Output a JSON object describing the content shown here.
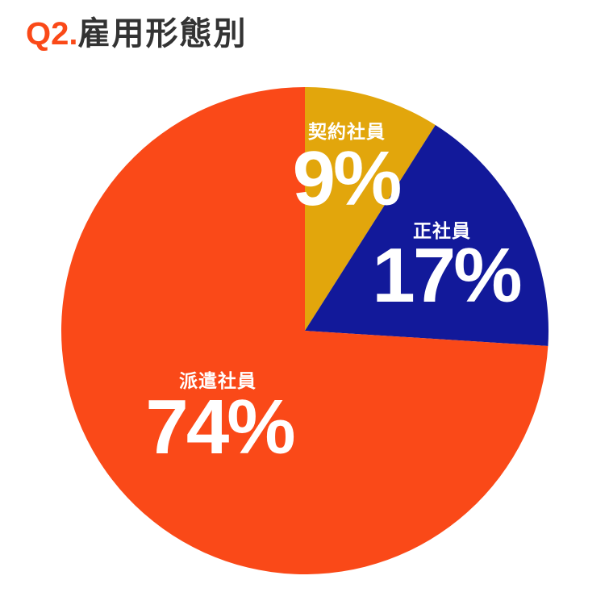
{
  "title": {
    "prefix": "Q2.",
    "text": "雇用形態別"
  },
  "chart_data": {
    "type": "pie",
    "title": "Q2.雇用形態別",
    "start_angle_deg": 0,
    "direction": "clockwise",
    "legend_position": "none",
    "labels_inside_slices": true,
    "label_text_color": "#FFFFFF",
    "slices": [
      {
        "label": "契約社員",
        "value": 9,
        "display": "9%",
        "color": "#E2A60C"
      },
      {
        "label": "正社員",
        "value": 17,
        "display": "17%",
        "color": "#12199A"
      },
      {
        "label": "派遣社員",
        "value": 74,
        "display": "74%",
        "color": "#FA4918"
      }
    ]
  },
  "colors": {
    "accent": "#FA4918",
    "title_text": "#333333",
    "background": "#FFFFFF"
  }
}
